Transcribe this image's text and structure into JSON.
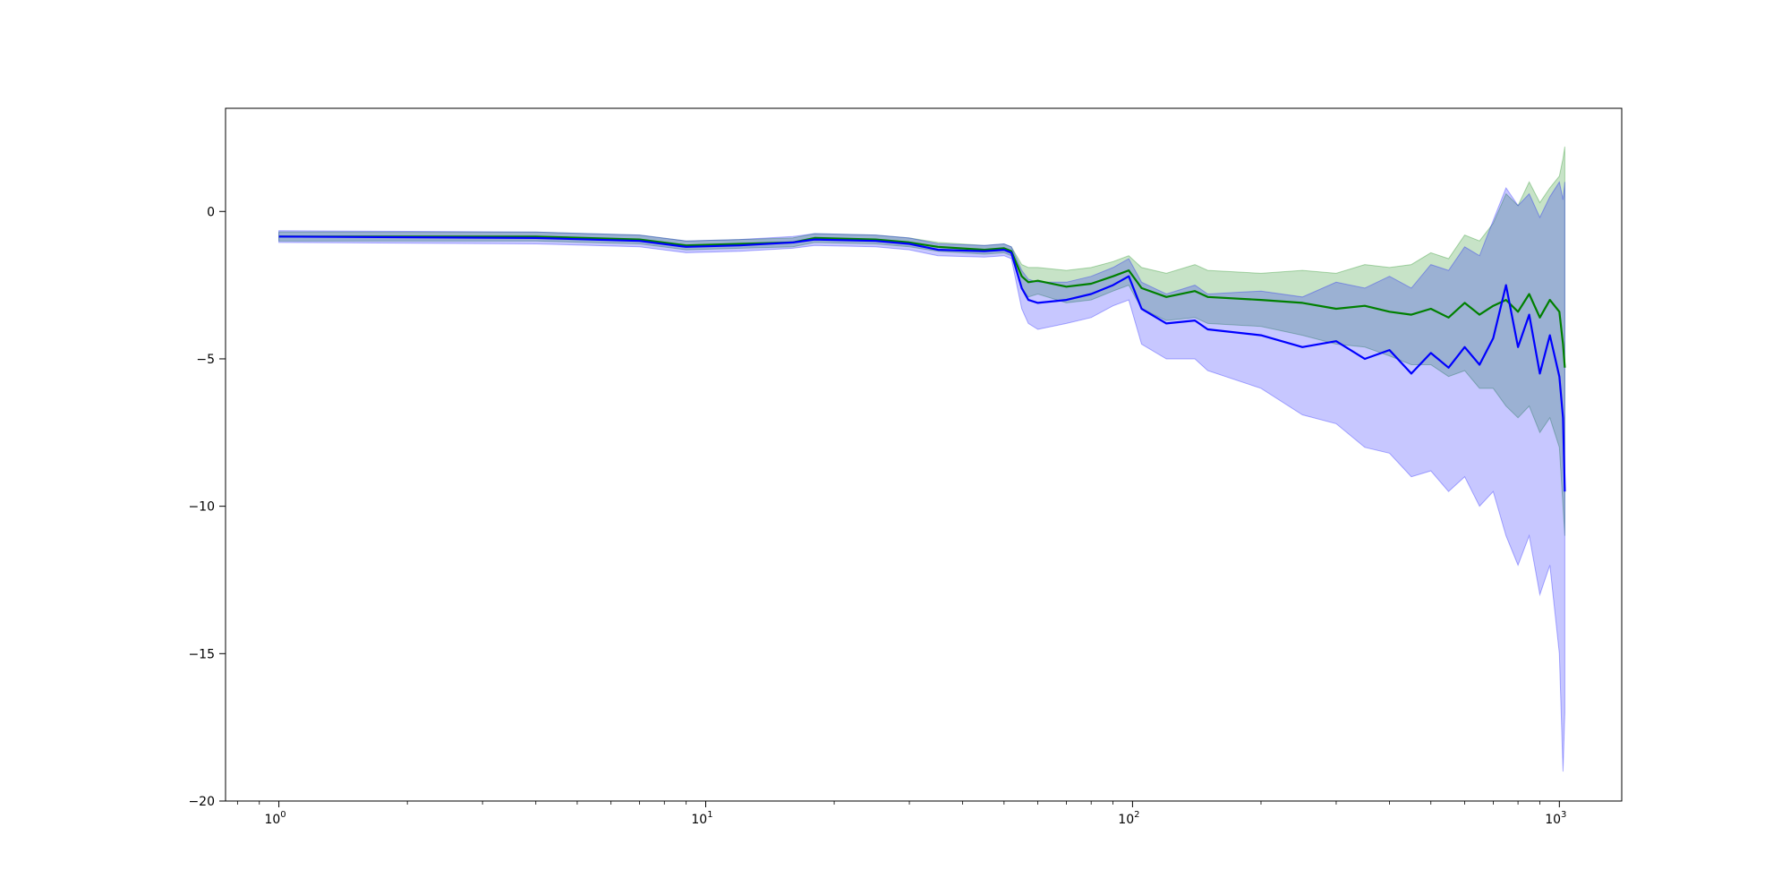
{
  "chart_data": {
    "type": "line",
    "title": "",
    "xlabel": "",
    "ylabel": "",
    "x_scale": "log",
    "xlim": [
      0.75,
      1400
    ],
    "ylim": [
      -20,
      3.5
    ],
    "grid": false,
    "legend": "none",
    "x_ticks": [
      {
        "value": 1,
        "base": "10",
        "exp": "0"
      },
      {
        "value": 10,
        "base": "10",
        "exp": "1"
      },
      {
        "value": 100,
        "base": "10",
        "exp": "2"
      },
      {
        "value": 1000,
        "base": "10",
        "exp": "3"
      }
    ],
    "y_ticks": [
      {
        "value": 0,
        "label": "0"
      },
      {
        "value": -5,
        "label": "−5"
      },
      {
        "value": -10,
        "label": "−10"
      },
      {
        "value": -15,
        "label": "−15"
      },
      {
        "value": -20,
        "label": "−20"
      }
    ],
    "series": [
      {
        "color": "#008000",
        "band_color": "#008000",
        "x": [
          1,
          4,
          7,
          9,
          12,
          16,
          18,
          25,
          30,
          35,
          45,
          50,
          52,
          55,
          57,
          60,
          70,
          80,
          90,
          98,
          105,
          120,
          140,
          150,
          200,
          250,
          300,
          350,
          400,
          450,
          500,
          550,
          600,
          650,
          700,
          750,
          800,
          850,
          900,
          950,
          1000,
          1020,
          1030
        ],
        "y": [
          -0.85,
          -0.85,
          -0.95,
          -1.15,
          -1.1,
          -1.05,
          -0.9,
          -0.95,
          -1.05,
          -1.2,
          -1.3,
          -1.25,
          -1.35,
          -2.2,
          -2.4,
          -2.35,
          -2.55,
          -2.45,
          -2.2,
          -2.0,
          -2.6,
          -2.9,
          -2.7,
          -2.9,
          -3.0,
          -3.1,
          -3.3,
          -3.2,
          -3.4,
          -3.5,
          -3.3,
          -3.6,
          -3.1,
          -3.5,
          -3.2,
          -3.0,
          -3.4,
          -2.8,
          -3.6,
          -3.0,
          -3.4,
          -4.5,
          -5.3
        ],
        "upper": [
          -0.7,
          -0.7,
          -0.8,
          -1.0,
          -0.95,
          -0.9,
          -0.75,
          -0.8,
          -0.9,
          -1.05,
          -1.15,
          -1.1,
          -1.2,
          -1.8,
          -1.9,
          -1.9,
          -2.0,
          -1.9,
          -1.7,
          -1.5,
          -1.9,
          -2.1,
          -1.8,
          -2.0,
          -2.1,
          -2.0,
          -2.1,
          -1.8,
          -1.9,
          -1.8,
          -1.4,
          -1.6,
          -0.8,
          -1.0,
          -0.4,
          0.6,
          0.2,
          1.0,
          0.3,
          0.8,
          1.2,
          1.8,
          2.2
        ],
        "lower": [
          -1.0,
          -1.0,
          -1.1,
          -1.3,
          -1.25,
          -1.2,
          -1.05,
          -1.1,
          -1.2,
          -1.35,
          -1.45,
          -1.4,
          -1.5,
          -2.6,
          -2.9,
          -2.8,
          -3.1,
          -3.0,
          -2.7,
          -2.5,
          -3.3,
          -3.7,
          -3.6,
          -3.8,
          -3.9,
          -4.2,
          -4.5,
          -4.6,
          -4.9,
          -5.2,
          -5.2,
          -5.6,
          -5.4,
          -6.0,
          -6.0,
          -6.6,
          -7.0,
          -6.6,
          -7.5,
          -7.0,
          -8.0,
          -10.0,
          -11.0
        ]
      },
      {
        "color": "#0000ff",
        "band_color": "#0000ff",
        "x": [
          1,
          4,
          7,
          9,
          12,
          16,
          18,
          25,
          30,
          35,
          45,
          50,
          52,
          55,
          57,
          60,
          70,
          80,
          90,
          98,
          105,
          120,
          140,
          150,
          200,
          250,
          300,
          350,
          400,
          450,
          500,
          550,
          600,
          650,
          700,
          750,
          800,
          850,
          900,
          950,
          1000,
          1020,
          1030
        ],
        "y": [
          -0.85,
          -0.9,
          -1.0,
          -1.2,
          -1.15,
          -1.05,
          -0.95,
          -1.0,
          -1.1,
          -1.3,
          -1.35,
          -1.3,
          -1.4,
          -2.6,
          -3.0,
          -3.1,
          -3.0,
          -2.8,
          -2.5,
          -2.2,
          -3.3,
          -3.8,
          -3.7,
          -4.0,
          -4.2,
          -4.6,
          -4.4,
          -5.0,
          -4.7,
          -5.5,
          -4.8,
          -5.3,
          -4.6,
          -5.2,
          -4.3,
          -2.5,
          -4.6,
          -3.5,
          -5.5,
          -4.2,
          -5.6,
          -7.0,
          -9.5
        ],
        "upper": [
          -0.65,
          -0.7,
          -0.8,
          -1.0,
          -0.95,
          -0.85,
          -0.75,
          -0.8,
          -0.9,
          -1.1,
          -1.15,
          -1.1,
          -1.2,
          -2.0,
          -2.3,
          -2.4,
          -2.4,
          -2.2,
          -1.9,
          -1.6,
          -2.4,
          -2.8,
          -2.5,
          -2.8,
          -2.7,
          -2.9,
          -2.4,
          -2.6,
          -2.2,
          -2.6,
          -1.8,
          -2.0,
          -1.2,
          -1.5,
          -0.3,
          0.8,
          0.2,
          0.6,
          -0.2,
          0.5,
          1.0,
          0.4,
          1.0
        ],
        "lower": [
          -1.05,
          -1.1,
          -1.2,
          -1.4,
          -1.35,
          -1.25,
          -1.15,
          -1.2,
          -1.3,
          -1.5,
          -1.55,
          -1.5,
          -1.6,
          -3.3,
          -3.8,
          -4.0,
          -3.8,
          -3.6,
          -3.2,
          -3.0,
          -4.5,
          -5.0,
          -5.0,
          -5.4,
          -6.0,
          -6.9,
          -7.2,
          -8.0,
          -8.2,
          -9.0,
          -8.8,
          -9.5,
          -9.0,
          -10.0,
          -9.5,
          -11.0,
          -12.0,
          -11.0,
          -13.0,
          -12.0,
          -15.0,
          -19.0,
          -17.0
        ]
      }
    ]
  }
}
